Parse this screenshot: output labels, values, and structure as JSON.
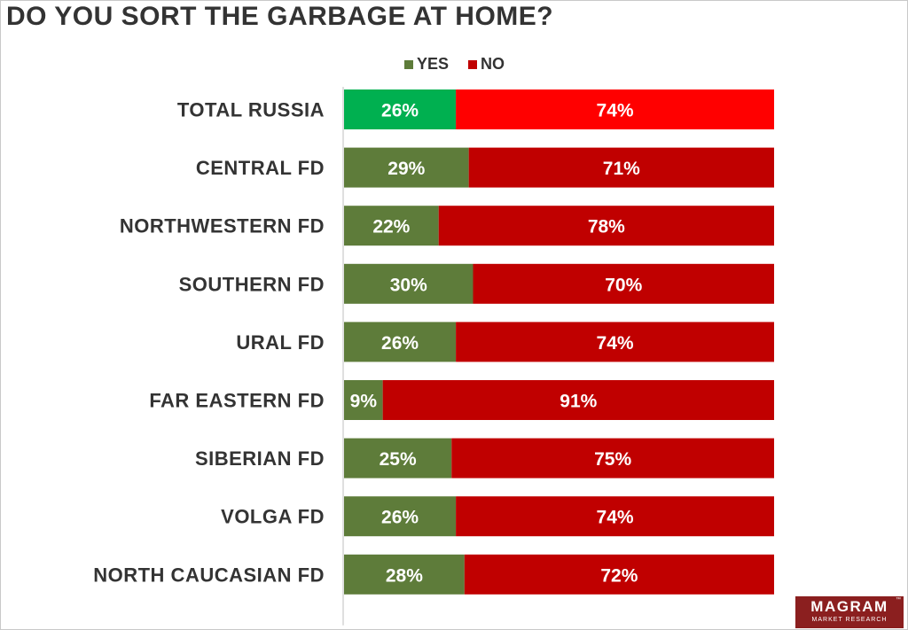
{
  "chart_data": {
    "type": "bar",
    "orientation": "horizontal",
    "stacked": true,
    "title": "DO YOU SORT THE GARBAGE AT HOME?",
    "categories": [
      "TOTAL RUSSIA",
      "CENTRAL FD",
      "NORTHWESTERN FD",
      "SOUTHERN  FD",
      "URAL FD",
      "FAR EASTERN FD",
      "SIBERIAN FD",
      "VOLGA FD",
      "NORTH CAUCASIAN FD"
    ],
    "series": [
      {
        "name": "YES",
        "values": [
          26,
          29,
          22,
          30,
          26,
          9,
          25,
          26,
          28
        ],
        "color": "#5e7c3a",
        "highlight_color": "#00b050"
      },
      {
        "name": "NO",
        "values": [
          74,
          71,
          78,
          70,
          74,
          91,
          75,
          74,
          72
        ],
        "color": "#c00000",
        "highlight_color": "#ff0000"
      }
    ],
    "highlight_index": 0,
    "value_suffix": "%",
    "xlim": [
      0,
      100
    ],
    "legend_position": "top",
    "grid": false
  },
  "branding": {
    "logo_main": "MAGRAM",
    "logo_sub": "MARKET RESEARCH",
    "logo_tm": "™"
  }
}
